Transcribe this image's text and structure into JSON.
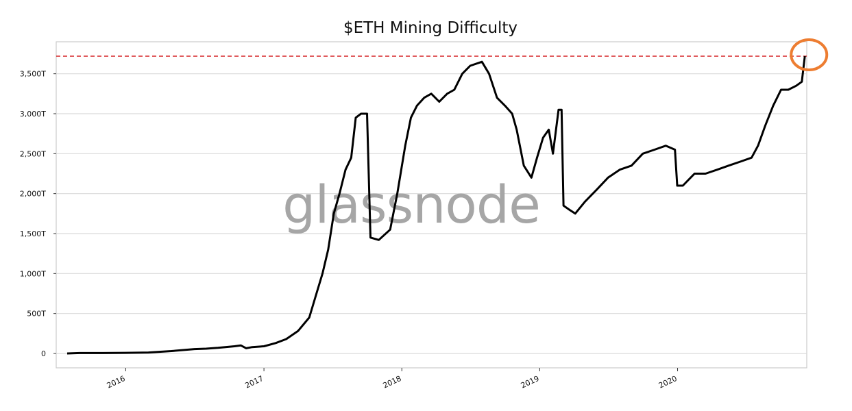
{
  "chart_data": {
    "type": "line",
    "title": "$ETH Mining Difficulty",
    "xlabel": "",
    "ylabel": "",
    "watermark": "glassnode",
    "x_axis": {
      "type": "date",
      "range": [
        "2015-07-01",
        "2020-12-08"
      ],
      "ticks": [
        {
          "value": "2016-01-01",
          "label": "2016"
        },
        {
          "value": "2017-01-01",
          "label": "2017"
        },
        {
          "value": "2018-01-01",
          "label": "2018"
        },
        {
          "value": "2019-01-01",
          "label": "2019"
        },
        {
          "value": "2020-01-01",
          "label": "2020"
        }
      ]
    },
    "y_axis": {
      "range": [
        -180,
        3900
      ],
      "ticks": [
        {
          "value": 0,
          "label": "0"
        },
        {
          "value": 500,
          "label": "500T"
        },
        {
          "value": 1000,
          "label": "1,000T"
        },
        {
          "value": 1500,
          "label": "1,500T"
        },
        {
          "value": 2000,
          "label": "2,000T"
        },
        {
          "value": 2500,
          "label": "2,500T"
        },
        {
          "value": 3000,
          "label": "3,000T"
        },
        {
          "value": 3500,
          "label": "3,500T"
        }
      ]
    },
    "grid": "horizontal",
    "reference_line": {
      "value": 3720,
      "style": "dashed",
      "color": "#d62728"
    },
    "highlight_marker": {
      "x": "2020-12-03",
      "y": 3720,
      "shape": "circle",
      "color": "#ed7d31"
    },
    "colors": {
      "series": "#000000",
      "grid": "#d9d9d9",
      "axes": "#cccccc",
      "watermark": "#a6a6a6"
    },
    "series": [
      {
        "name": "",
        "points": [
          [
            "2015-07-30",
            0
          ],
          [
            "2015-09-01",
            5
          ],
          [
            "2015-11-01",
            5
          ],
          [
            "2016-01-01",
            8
          ],
          [
            "2016-03-01",
            12
          ],
          [
            "2016-05-01",
            30
          ],
          [
            "2016-07-01",
            55
          ],
          [
            "2016-08-01",
            60
          ],
          [
            "2016-09-01",
            70
          ],
          [
            "2016-10-15",
            90
          ],
          [
            "2016-11-01",
            100
          ],
          [
            "2016-11-15",
            65
          ],
          [
            "2016-12-01",
            80
          ],
          [
            "2017-01-01",
            90
          ],
          [
            "2017-02-01",
            130
          ],
          [
            "2017-03-01",
            180
          ],
          [
            "2017-04-01",
            280
          ],
          [
            "2017-05-01",
            450
          ],
          [
            "2017-05-20",
            750
          ],
          [
            "2017-06-05",
            1000
          ],
          [
            "2017-06-20",
            1300
          ],
          [
            "2017-07-05",
            1750
          ],
          [
            "2017-07-20",
            2000
          ],
          [
            "2017-08-05",
            2300
          ],
          [
            "2017-08-20",
            2450
          ],
          [
            "2017-09-01",
            2950
          ],
          [
            "2017-09-15",
            3000
          ],
          [
            "2017-10-01",
            3000
          ],
          [
            "2017-10-10",
            1450
          ],
          [
            "2017-11-01",
            1420
          ],
          [
            "2017-12-01",
            1550
          ],
          [
            "2017-12-20",
            2000
          ],
          [
            "2018-01-10",
            2600
          ],
          [
            "2018-01-25",
            2950
          ],
          [
            "2018-02-10",
            3100
          ],
          [
            "2018-03-01",
            3200
          ],
          [
            "2018-03-20",
            3250
          ],
          [
            "2018-04-10",
            3150
          ],
          [
            "2018-05-01",
            3250
          ],
          [
            "2018-05-20",
            3300
          ],
          [
            "2018-06-10",
            3500
          ],
          [
            "2018-07-01",
            3600
          ],
          [
            "2018-08-01",
            3650
          ],
          [
            "2018-08-20",
            3500
          ],
          [
            "2018-09-10",
            3200
          ],
          [
            "2018-10-01",
            3100
          ],
          [
            "2018-10-20",
            3000
          ],
          [
            "2018-11-01",
            2800
          ],
          [
            "2018-11-20",
            2350
          ],
          [
            "2018-12-10",
            2200
          ],
          [
            "2018-12-25",
            2450
          ],
          [
            "2019-01-10",
            2700
          ],
          [
            "2019-01-25",
            2800
          ],
          [
            "2019-02-05",
            2500
          ],
          [
            "2019-02-20",
            3050
          ],
          [
            "2019-02-28",
            3050
          ],
          [
            "2019-03-05",
            1850
          ],
          [
            "2019-03-20",
            1800
          ],
          [
            "2019-04-05",
            1750
          ],
          [
            "2019-05-01",
            1900
          ],
          [
            "2019-06-01",
            2050
          ],
          [
            "2019-07-01",
            2200
          ],
          [
            "2019-08-01",
            2300
          ],
          [
            "2019-09-01",
            2350
          ],
          [
            "2019-10-01",
            2500
          ],
          [
            "2019-11-01",
            2550
          ],
          [
            "2019-12-01",
            2600
          ],
          [
            "2019-12-25",
            2550
          ],
          [
            "2019-12-31",
            2100
          ],
          [
            "2020-01-15",
            2100
          ],
          [
            "2020-02-15",
            2250
          ],
          [
            "2020-03-15",
            2250
          ],
          [
            "2020-04-15",
            2300
          ],
          [
            "2020-05-15",
            2350
          ],
          [
            "2020-06-15",
            2400
          ],
          [
            "2020-07-15",
            2450
          ],
          [
            "2020-08-01",
            2600
          ],
          [
            "2020-08-20",
            2850
          ],
          [
            "2020-09-10",
            3100
          ],
          [
            "2020-10-01",
            3300
          ],
          [
            "2020-10-20",
            3300
          ],
          [
            "2020-11-10",
            3350
          ],
          [
            "2020-11-25",
            3400
          ],
          [
            "2020-12-03",
            3720
          ]
        ]
      }
    ]
  }
}
